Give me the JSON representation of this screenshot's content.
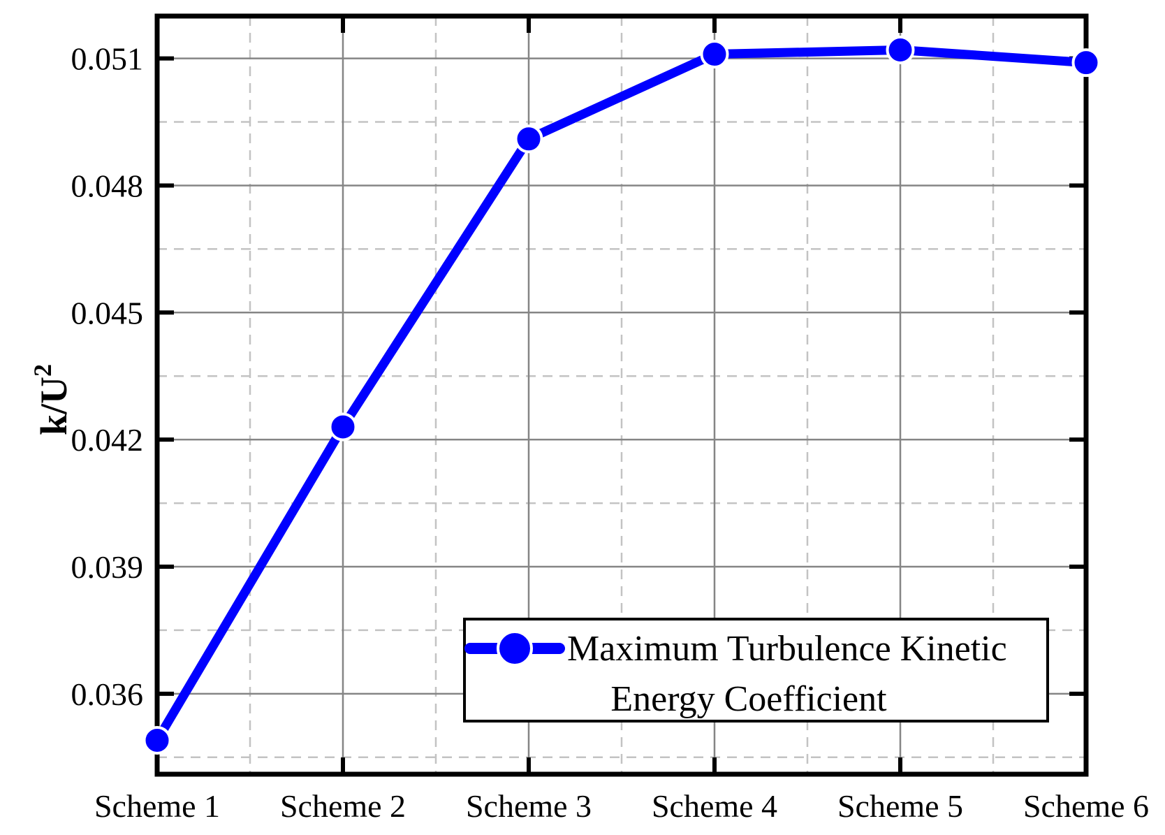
{
  "chart_data": {
    "type": "line",
    "title": "",
    "categories": [
      "Scheme 1",
      "Scheme 2",
      "Scheme 3",
      "Scheme 4",
      "Scheme 5",
      "Scheme 6"
    ],
    "series": [
      {
        "name": "Maximum Turbulence Kinetic Energy Coefficient",
        "values": [
          0.0349,
          0.0423,
          0.0491,
          0.0511,
          0.0512,
          0.0509
        ],
        "marker": "filled-circle"
      }
    ],
    "xlabel": "",
    "ylabel": "k/U^2",
    "ylabel_base": "k/U",
    "ylabel_superscript": "2",
    "ylim": [
      0.0341,
      0.052
    ],
    "yticks": [
      0.036,
      0.039,
      0.042,
      0.045,
      0.048,
      0.051
    ],
    "ytick_labels": [
      "0.036",
      "0.039",
      "0.042",
      "0.045",
      "0.048",
      "0.051"
    ],
    "minor_yticks": [
      0.0345,
      0.0375,
      0.0405,
      0.0435,
      0.0465,
      0.0495
    ],
    "grid": {
      "major": "solid",
      "minor": "dashed",
      "minor_x_at_category_midpoints": true
    },
    "legend": {
      "position": "lower-right",
      "lines": [
        "Maximum Turbulence Kinetic",
        "Energy Coefficient"
      ]
    }
  },
  "colors": {
    "series": "#0000ff",
    "grid_major": "#858585",
    "grid_minor": "#c3c3c3",
    "axis": "#000000",
    "legend_background": "#ffffff",
    "background": "#ffffff",
    "text": "#000000"
  }
}
